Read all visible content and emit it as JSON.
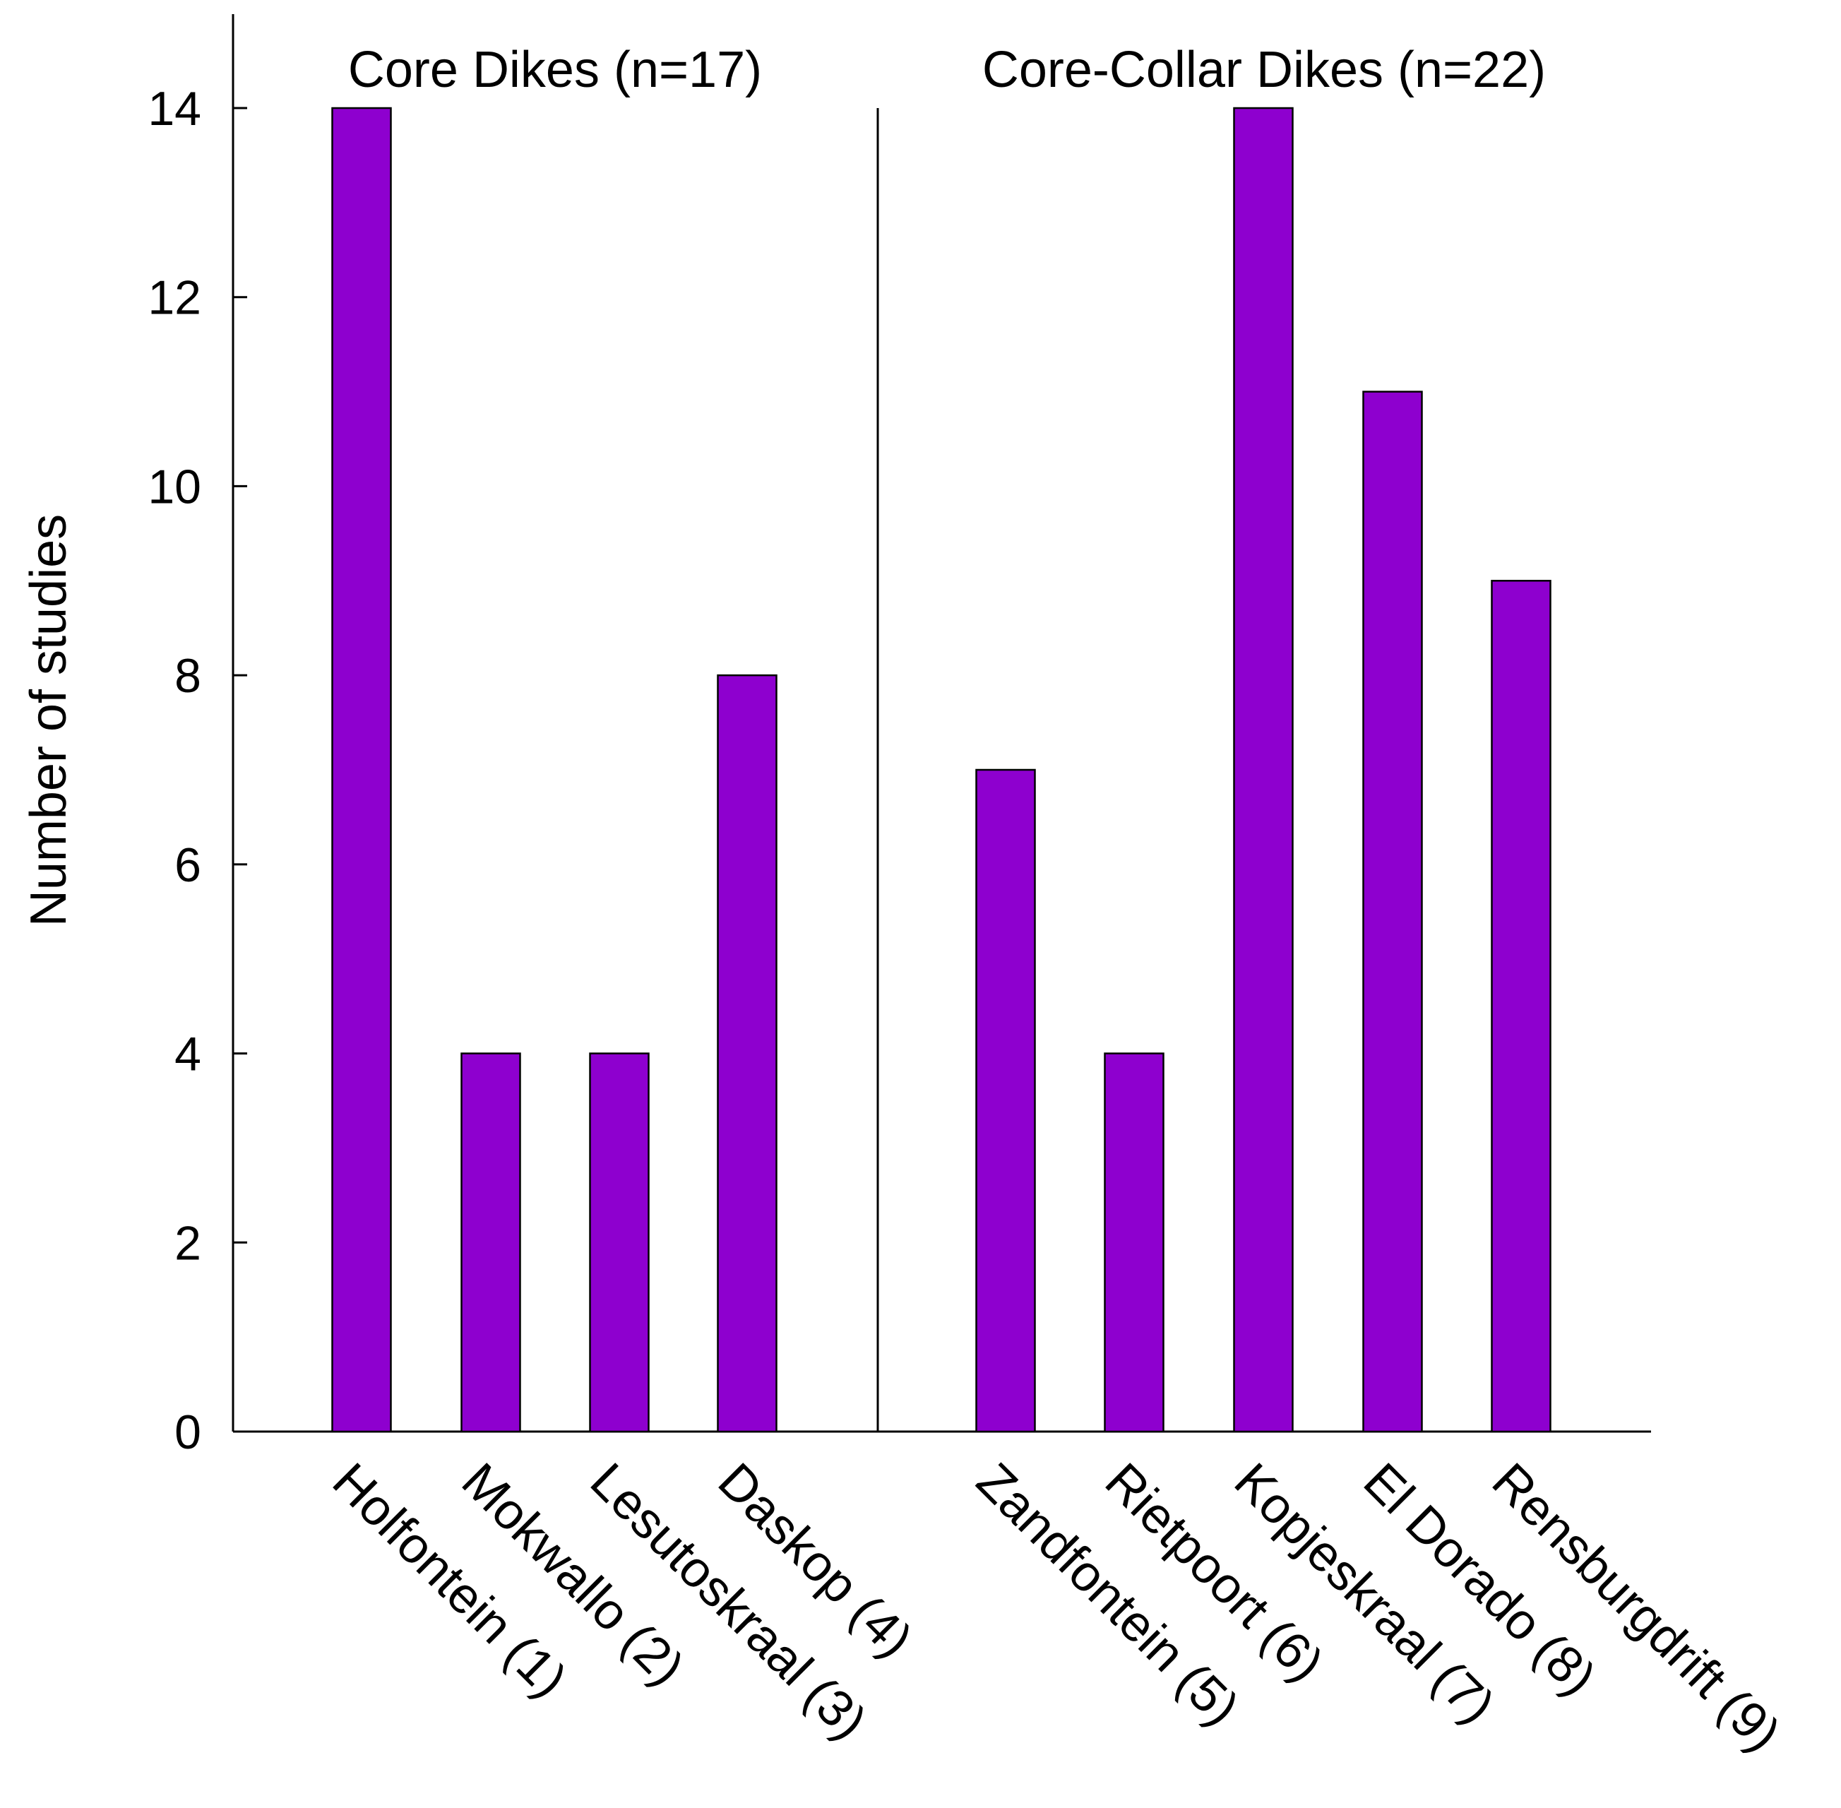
{
  "chart_data": {
    "type": "bar",
    "title": "",
    "xlabel": "",
    "ylabel": "Number of studies",
    "ylim": [
      0,
      15
    ],
    "yticks": [
      0,
      2,
      4,
      6,
      8,
      10,
      12,
      14
    ],
    "grid": false,
    "legend": "none",
    "bar_color": "#8E00CF",
    "groups": [
      {
        "name": "Core Dikes (n=17)",
        "categories": [
          "Holfontein (1)",
          "Mokwallo (2)",
          "Lesutoskraal (3)",
          "Daskop (4)"
        ],
        "values": [
          14,
          4,
          4,
          8
        ]
      },
      {
        "name": "Core-Collar Dikes (n=22)",
        "categories": [
          "Zandfontein (5)",
          "Rietpoort (6)",
          "Kopjeskraal (7)",
          "El Dorado (8)",
          "Rensburgdrift (9)"
        ],
        "values": [
          7,
          4,
          14,
          11,
          9
        ]
      }
    ]
  }
}
